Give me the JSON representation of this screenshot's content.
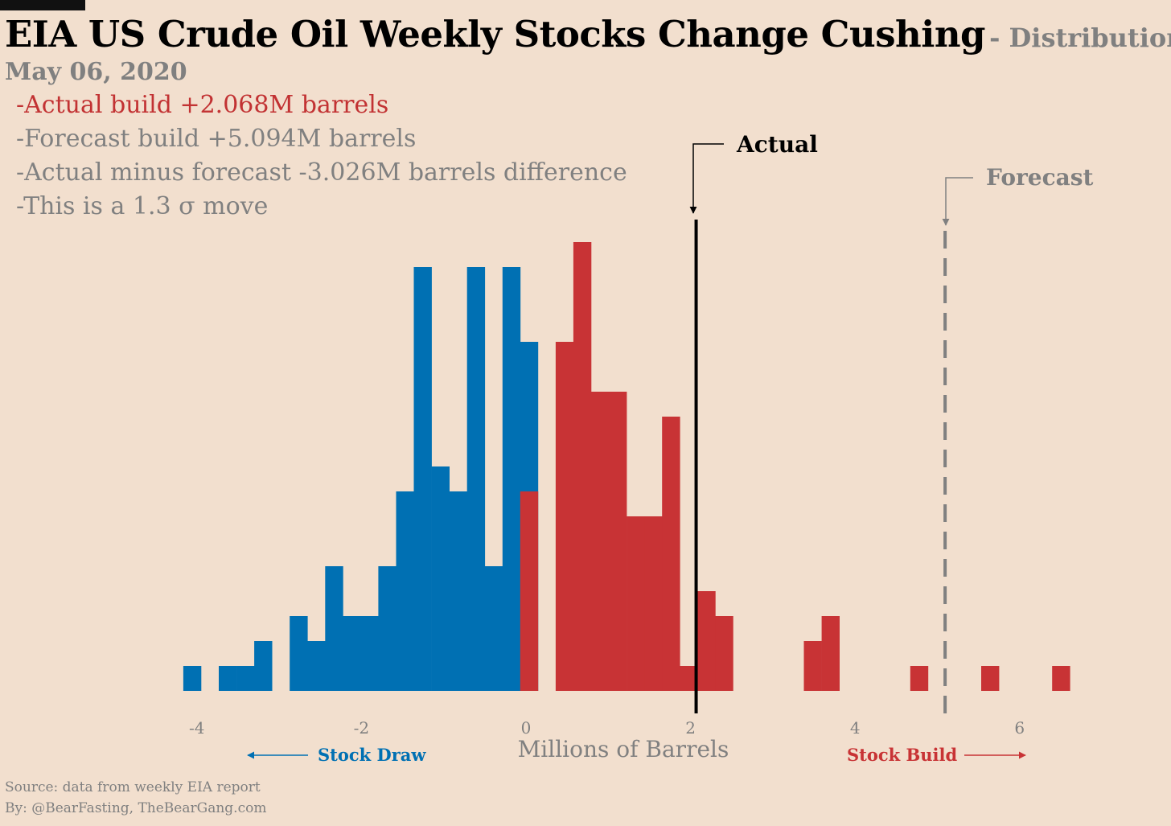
{
  "header": {
    "title": "EIA US Crude Oil Weekly Stocks Change Cushing",
    "subtitle": "- Distribution",
    "date": "May 06, 2020"
  },
  "stats": {
    "actual": "-Actual build +2.068M barrels",
    "forecast": "-Forecast build +5.094M barrels",
    "difference": "-Actual minus forecast  -3.026M barrels difference",
    "sigma": "-This is a 1.3 σ move"
  },
  "footer": {
    "source": "Source: data from  weekly EIA report",
    "byline": "By: @BearFasting, TheBearGang.com"
  },
  "colors": {
    "draw": "#0070b3",
    "build": "#c83335",
    "actual_line": "#000000",
    "forecast_line": "#808080",
    "text_gray": "#808080"
  },
  "chart_data": {
    "type": "bar",
    "subtype": "histogram",
    "xlabel": "Millions of Barrels",
    "x_ticks": [
      "-4",
      "-2",
      "0",
      "2",
      "4",
      "6"
    ],
    "x_tick_values": [
      -4,
      -2,
      0,
      2,
      4,
      6
    ],
    "xlim": [
      -4.35,
      6.75
    ],
    "ylim": [
      0,
      18.5
    ],
    "bin_width": 0.2155,
    "bins": [
      {
        "left": -4.1648,
        "count": 1,
        "side": "draw"
      },
      {
        "left": -3.7338,
        "count": 1,
        "side": "draw"
      },
      {
        "left": -3.5183,
        "count": 1,
        "side": "draw"
      },
      {
        "left": -3.3028,
        "count": 2,
        "side": "draw"
      },
      {
        "left": -2.8718,
        "count": 3,
        "side": "draw"
      },
      {
        "left": -2.6563,
        "count": 2,
        "side": "draw"
      },
      {
        "left": -2.4408,
        "count": 5,
        "side": "draw"
      },
      {
        "left": -2.2253,
        "count": 3,
        "side": "draw"
      },
      {
        "left": -2.0098,
        "count": 3,
        "side": "draw"
      },
      {
        "left": -1.7943,
        "count": 5,
        "side": "draw"
      },
      {
        "left": -1.5788,
        "count": 8,
        "side": "draw"
      },
      {
        "left": -1.3633,
        "count": 17,
        "side": "draw"
      },
      {
        "left": -1.1478,
        "count": 9,
        "side": "draw"
      },
      {
        "left": -0.9323,
        "count": 8,
        "side": "draw"
      },
      {
        "left": -0.7168,
        "count": 17,
        "side": "draw"
      },
      {
        "left": -0.5013,
        "count": 5,
        "side": "draw"
      },
      {
        "left": -0.2858,
        "count": 17,
        "side": "draw"
      },
      {
        "left": -0.0703,
        "count": 14,
        "side": "draw"
      },
      {
        "left": -0.0703,
        "count": 8,
        "side": "build"
      },
      {
        "left": 0.3607,
        "count": 14,
        "side": "build"
      },
      {
        "left": 0.5762,
        "count": 18,
        "side": "build"
      },
      {
        "left": 0.7917,
        "count": 12,
        "side": "build"
      },
      {
        "left": 1.0072,
        "count": 12,
        "side": "build"
      },
      {
        "left": 1.2227,
        "count": 7,
        "side": "build"
      },
      {
        "left": 1.4382,
        "count": 7,
        "side": "build"
      },
      {
        "left": 1.6537,
        "count": 11,
        "side": "build"
      },
      {
        "left": 1.8692,
        "count": 1,
        "side": "build"
      },
      {
        "left": 2.0847,
        "count": 4,
        "side": "build"
      },
      {
        "left": 2.3002,
        "count": 3,
        "side": "build"
      },
      {
        "left": 3.3777,
        "count": 2,
        "side": "build"
      },
      {
        "left": 3.5932,
        "count": 3,
        "side": "build"
      },
      {
        "left": 4.6707,
        "count": 1,
        "side": "build"
      },
      {
        "left": 5.5327,
        "count": 1,
        "side": "build"
      },
      {
        "left": 6.3947,
        "count": 1,
        "side": "build"
      }
    ],
    "actual": {
      "label": "Actual",
      "value": 2.068
    },
    "forecast": {
      "label": "Forecast",
      "value": 5.094
    },
    "left_annotation": "Stock Draw",
    "right_annotation": "Stock Build"
  }
}
